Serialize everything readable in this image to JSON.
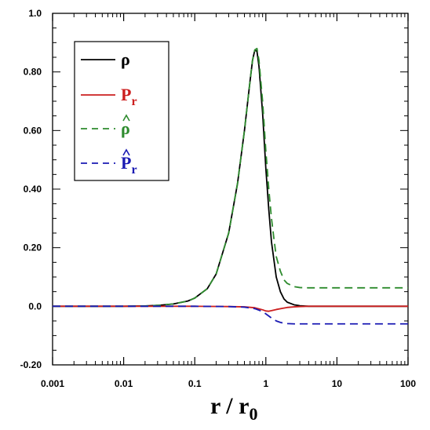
{
  "chart_data": {
    "type": "line",
    "xscale": "log",
    "xlim": [
      0.001,
      100
    ],
    "ylim": [
      -0.2,
      1.0
    ],
    "xticks": [
      {
        "value": 0.001,
        "label": "0.001"
      },
      {
        "value": 0.01,
        "label": "0.01"
      },
      {
        "value": 0.1,
        "label": "0.1"
      },
      {
        "value": 1,
        "label": "1"
      },
      {
        "value": 10,
        "label": "10"
      },
      {
        "value": 100,
        "label": "100"
      }
    ],
    "yticks": [
      {
        "value": -0.2,
        "label": "-0.20"
      },
      {
        "value": 0.0,
        "label": "0.0"
      },
      {
        "value": 0.2,
        "label": "0.20"
      },
      {
        "value": 0.4,
        "label": "0.40"
      },
      {
        "value": 0.6,
        "label": "0.60"
      },
      {
        "value": 0.8,
        "label": "0.80"
      },
      {
        "value": 1.0,
        "label": "1.0"
      }
    ],
    "xlabel": {
      "main": "r / r",
      "sub": "0"
    },
    "ylabel": "",
    "title": "",
    "grid": false,
    "legend_position": "top-left",
    "series": [
      {
        "legend": {
          "main": "ρ",
          "sub": "",
          "hat": false
        },
        "color": "#000000",
        "dash": "solid",
        "x": [
          0.001,
          0.01,
          0.02,
          0.03,
          0.05,
          0.08,
          0.1,
          0.15,
          0.2,
          0.3,
          0.4,
          0.5,
          0.6,
          0.65,
          0.7,
          0.75,
          0.8,
          0.9,
          1.0,
          1.1,
          1.2,
          1.4,
          1.6,
          1.8,
          2.0,
          2.5,
          3.0,
          4.0,
          5.0,
          10,
          100
        ],
        "y": [
          0.0,
          0.0,
          0.001,
          0.003,
          0.008,
          0.018,
          0.028,
          0.06,
          0.11,
          0.25,
          0.42,
          0.6,
          0.77,
          0.84,
          0.875,
          0.87,
          0.82,
          0.66,
          0.47,
          0.33,
          0.22,
          0.1,
          0.05,
          0.025,
          0.014,
          0.005,
          0.002,
          0.0,
          0.0,
          0.0,
          0.0
        ]
      },
      {
        "legend": {
          "main": "P",
          "sub": "r",
          "hat": false
        },
        "color": "#cc1f1f",
        "dash": "solid",
        "x": [
          0.001,
          0.1,
          0.3,
          0.5,
          0.7,
          0.9,
          1.0,
          1.1,
          1.2,
          1.4,
          1.7,
          2.0,
          2.5,
          3.0,
          4.0,
          5.0,
          10,
          100
        ],
        "y": [
          0.0,
          0.0,
          -0.001,
          -0.002,
          -0.005,
          -0.012,
          -0.016,
          -0.017,
          -0.015,
          -0.011,
          -0.007,
          -0.004,
          -0.002,
          -0.001,
          0.0,
          0.0,
          0.0,
          0.0
        ]
      },
      {
        "legend": {
          "main": "ρ",
          "sub": "",
          "hat": true
        },
        "color": "#2e8b2e",
        "dash": "10,6",
        "x": [
          0.001,
          0.01,
          0.02,
          0.03,
          0.05,
          0.08,
          0.1,
          0.15,
          0.2,
          0.3,
          0.4,
          0.5,
          0.6,
          0.65,
          0.7,
          0.75,
          0.8,
          0.9,
          1.0,
          1.1,
          1.2,
          1.3,
          1.4,
          1.6,
          1.8,
          2.0,
          2.5,
          3.0,
          4.0,
          5.0,
          10,
          100
        ],
        "y": [
          0.0,
          0.0,
          0.001,
          0.003,
          0.008,
          0.018,
          0.028,
          0.06,
          0.11,
          0.25,
          0.42,
          0.6,
          0.77,
          0.84,
          0.875,
          0.88,
          0.84,
          0.7,
          0.53,
          0.4,
          0.3,
          0.23,
          0.17,
          0.12,
          0.09,
          0.078,
          0.067,
          0.064,
          0.063,
          0.063,
          0.063,
          0.063
        ]
      },
      {
        "legend": {
          "main": "P",
          "sub": "r",
          "hat": true
        },
        "color": "#1a1ab3",
        "dash": "10,6",
        "x": [
          0.001,
          0.1,
          0.3,
          0.5,
          0.7,
          0.9,
          1.0,
          1.2,
          1.4,
          1.6,
          1.8,
          2.0,
          2.5,
          3.0,
          4.0,
          10,
          100
        ],
        "y": [
          0.0,
          0.0,
          -0.001,
          -0.003,
          -0.008,
          -0.018,
          -0.026,
          -0.04,
          -0.05,
          -0.055,
          -0.058,
          -0.059,
          -0.06,
          -0.06,
          -0.06,
          -0.06,
          -0.06
        ]
      }
    ]
  }
}
